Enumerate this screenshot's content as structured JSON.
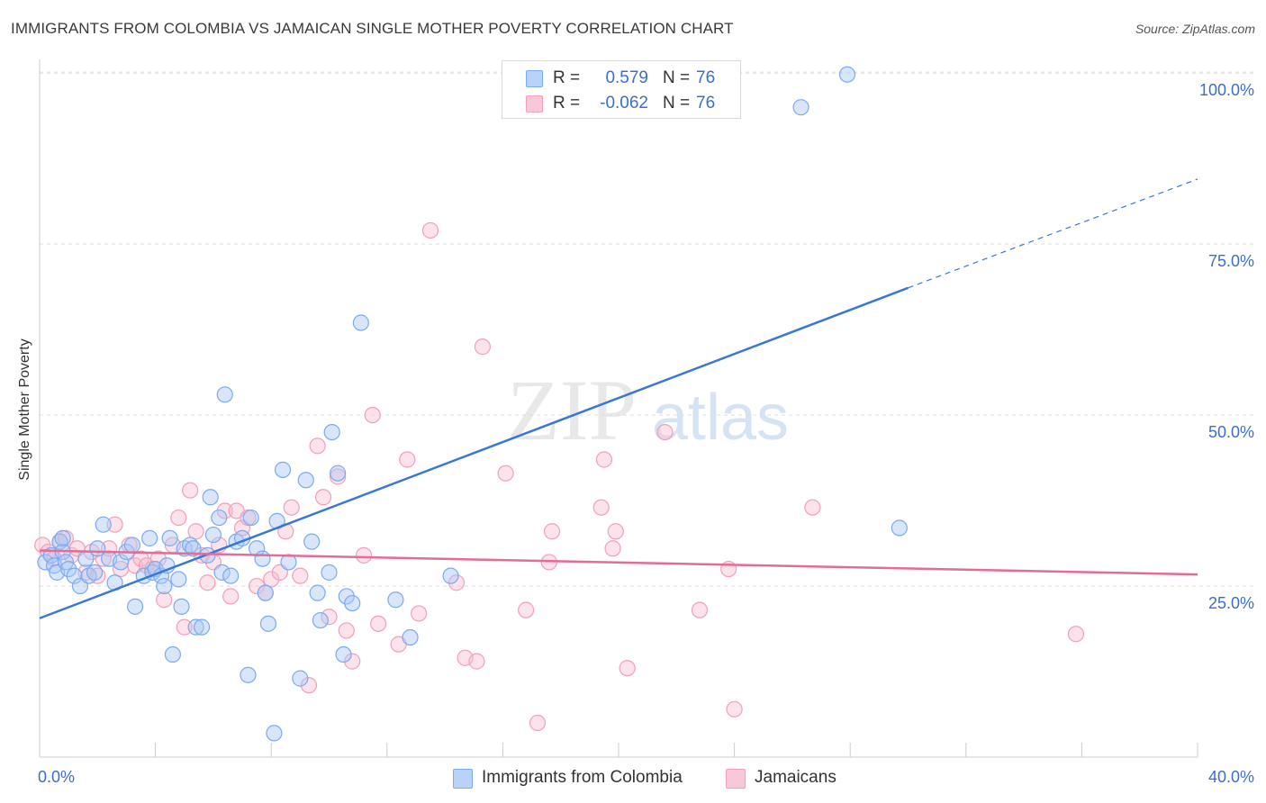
{
  "title": "IMMIGRANTS FROM COLOMBIA VS JAMAICAN SINGLE MOTHER POVERTY CORRELATION CHART",
  "source": "Source: ZipAtlas.com",
  "watermark": {
    "zip": "ZIP",
    "atlas": "atlas"
  },
  "stats": [
    {
      "r_label": "R =",
      "r_value": "0.579",
      "n_label": "N =",
      "n_value": "76",
      "color": "#7aaaf0",
      "fill": "#b8d2f8"
    },
    {
      "r_label": "R =",
      "r_value": "-0.062",
      "n_label": "N =",
      "n_value": "76",
      "color": "#f0a0b8",
      "fill": "#f9c8d6"
    }
  ],
  "legend": [
    {
      "label": "Immigrants from Colombia",
      "color": "#7aaaf0",
      "fill": "#b8d2f8"
    },
    {
      "label": "Jamaicans",
      "color": "#f0a0b8",
      "fill": "#f9c8d6"
    }
  ],
  "chart_data": {
    "type": "scatter",
    "title": "IMMIGRANTS FROM COLOMBIA VS JAMAICAN SINGLE MOTHER POVERTY CORRELATION CHART",
    "xlabel": "",
    "ylabel": "Single Mother Poverty",
    "xlim": [
      0,
      40
    ],
    "ylim": [
      0,
      102
    ],
    "x_tick_labels": [
      "0.0%",
      "40.0%"
    ],
    "y_ticks": [
      25,
      50,
      75,
      100
    ],
    "y_tick_labels": [
      "25.0%",
      "50.0%",
      "75.0%",
      "100.0%"
    ],
    "grid": true,
    "legend_position": "bottom",
    "series": [
      {
        "name": "Immigrants from Colombia",
        "color": "#3a78d4",
        "trend": {
          "x": [
            0,
            30
          ],
          "y": [
            20.3,
            68.6
          ],
          "dashed_to": [
            40,
            84.5
          ]
        },
        "points": [
          [
            0.2,
            28.5
          ],
          [
            0.4,
            29.5
          ],
          [
            0.5,
            28
          ],
          [
            0.6,
            27
          ],
          [
            0.7,
            31.5
          ],
          [
            0.8,
            30
          ],
          [
            0.9,
            28.5
          ],
          [
            1.0,
            27.5
          ],
          [
            1.2,
            26.5
          ],
          [
            1.4,
            25
          ],
          [
            1.6,
            29
          ],
          [
            1.7,
            26.5
          ],
          [
            1.9,
            27
          ],
          [
            2.0,
            30.5
          ],
          [
            2.2,
            34
          ],
          [
            2.4,
            29
          ],
          [
            2.6,
            25.5
          ],
          [
            2.8,
            28.5
          ],
          [
            3.0,
            30
          ],
          [
            3.2,
            31
          ],
          [
            3.3,
            22
          ],
          [
            3.6,
            26.5
          ],
          [
            3.8,
            32
          ],
          [
            3.9,
            27
          ],
          [
            4.0,
            27.5
          ],
          [
            4.2,
            26.5
          ],
          [
            4.3,
            25
          ],
          [
            4.4,
            28
          ],
          [
            4.5,
            32
          ],
          [
            4.6,
            15
          ],
          [
            4.8,
            26
          ],
          [
            4.9,
            22
          ],
          [
            5.0,
            30.5
          ],
          [
            5.2,
            31
          ],
          [
            5.3,
            30.5
          ],
          [
            5.4,
            19
          ],
          [
            5.6,
            19
          ],
          [
            5.8,
            29.5
          ],
          [
            5.9,
            38
          ],
          [
            6.0,
            32.5
          ],
          [
            6.2,
            35
          ],
          [
            6.3,
            27
          ],
          [
            6.4,
            53
          ],
          [
            6.6,
            26.5
          ],
          [
            6.8,
            31.5
          ],
          [
            7.0,
            32
          ],
          [
            7.2,
            12
          ],
          [
            7.3,
            35
          ],
          [
            7.5,
            30.5
          ],
          [
            7.7,
            29
          ],
          [
            7.8,
            24
          ],
          [
            7.9,
            19.5
          ],
          [
            8.1,
            3.5
          ],
          [
            8.2,
            34.5
          ],
          [
            8.4,
            42
          ],
          [
            8.6,
            28.5
          ],
          [
            9.0,
            11.5
          ],
          [
            9.2,
            40.5
          ],
          [
            9.4,
            31.5
          ],
          [
            9.6,
            24
          ],
          [
            9.7,
            20
          ],
          [
            10.0,
            27
          ],
          [
            10.3,
            41.5
          ],
          [
            10.1,
            47.5
          ],
          [
            10.5,
            15
          ],
          [
            10.6,
            23.5
          ],
          [
            10.8,
            22.5
          ],
          [
            11.1,
            63.5
          ],
          [
            12.3,
            23
          ],
          [
            12.8,
            17.5
          ],
          [
            14.2,
            26.5
          ],
          [
            22.6,
            99.5
          ],
          [
            26.3,
            95
          ],
          [
            27.9,
            99.8
          ],
          [
            29.7,
            33.5
          ],
          [
            0.8,
            32
          ]
        ]
      },
      {
        "name": "Jamaicans",
        "color": "#e36c98",
        "trend": {
          "x": [
            0,
            40
          ],
          "y": [
            30.2,
            26.7
          ]
        },
        "points": [
          [
            0.1,
            31
          ],
          [
            0.3,
            30
          ],
          [
            0.5,
            29
          ],
          [
            0.7,
            31.5
          ],
          [
            0.9,
            32
          ],
          [
            1.1,
            29.5
          ],
          [
            1.3,
            30.5
          ],
          [
            1.6,
            27
          ],
          [
            1.8,
            30
          ],
          [
            2.0,
            26.5
          ],
          [
            2.2,
            29
          ],
          [
            2.4,
            30.5
          ],
          [
            2.6,
            34
          ],
          [
            2.8,
            27.5
          ],
          [
            3.1,
            31
          ],
          [
            3.3,
            28
          ],
          [
            3.5,
            29
          ],
          [
            3.7,
            28
          ],
          [
            3.9,
            27.5
          ],
          [
            4.1,
            29
          ],
          [
            4.3,
            23
          ],
          [
            4.6,
            31
          ],
          [
            4.8,
            35
          ],
          [
            5.0,
            19
          ],
          [
            5.2,
            39
          ],
          [
            5.4,
            33
          ],
          [
            5.6,
            29.5
          ],
          [
            5.8,
            25.5
          ],
          [
            6.0,
            28.5
          ],
          [
            6.2,
            31
          ],
          [
            6.4,
            36
          ],
          [
            6.6,
            23.5
          ],
          [
            6.8,
            36
          ],
          [
            7.0,
            33.5
          ],
          [
            7.2,
            35
          ],
          [
            7.5,
            25
          ],
          [
            7.8,
            24
          ],
          [
            8.0,
            26
          ],
          [
            8.3,
            27
          ],
          [
            8.5,
            33
          ],
          [
            8.7,
            36.5
          ],
          [
            9.0,
            26.5
          ],
          [
            9.3,
            10.5
          ],
          [
            9.6,
            45.5
          ],
          [
            9.8,
            38
          ],
          [
            10.0,
            20.5
          ],
          [
            10.3,
            41
          ],
          [
            10.6,
            18.5
          ],
          [
            10.8,
            14
          ],
          [
            11.2,
            29.5
          ],
          [
            11.5,
            50
          ],
          [
            11.7,
            19.5
          ],
          [
            12.4,
            16.5
          ],
          [
            12.7,
            43.5
          ],
          [
            13.1,
            21
          ],
          [
            13.5,
            77
          ],
          [
            14.4,
            25.5
          ],
          [
            14.7,
            14.5
          ],
          [
            15.1,
            14
          ],
          [
            15.3,
            60
          ],
          [
            16.1,
            41.5
          ],
          [
            16.8,
            21.5
          ],
          [
            17.2,
            5
          ],
          [
            17.6,
            28.5
          ],
          [
            17.7,
            33
          ],
          [
            19.5,
            43.5
          ],
          [
            19.4,
            36.5
          ],
          [
            19.8,
            30.5
          ],
          [
            19.9,
            33
          ],
          [
            20.3,
            13
          ],
          [
            21.6,
            47.5
          ],
          [
            22.8,
            21.5
          ],
          [
            23.8,
            27.5
          ],
          [
            24.0,
            7
          ],
          [
            26.7,
            36.5
          ],
          [
            35.8,
            18
          ]
        ]
      }
    ]
  }
}
